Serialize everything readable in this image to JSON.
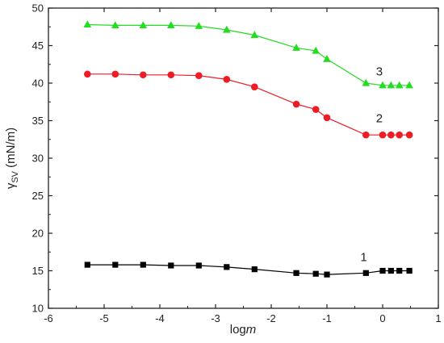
{
  "chart_data": {
    "type": "line",
    "xlabel": {
      "main": "log",
      "italic": "m"
    },
    "ylabel": {
      "main": "γ",
      "sub": "SV",
      "unit": " (mN/m)"
    },
    "xlim": [
      -6,
      1
    ],
    "ylim": [
      10,
      50
    ],
    "xticks": [
      -6,
      -5,
      -4,
      -3,
      -2,
      -1,
      0,
      1
    ],
    "yticks": [
      10,
      15,
      20,
      25,
      30,
      35,
      40,
      45,
      50
    ],
    "grid": false,
    "legend": "none",
    "series": [
      {
        "name": "1",
        "color": "#000000",
        "marker": "square",
        "x": [
          -5.3,
          -4.8,
          -4.3,
          -3.8,
          -3.3,
          -2.8,
          -2.3,
          -1.55,
          -1.2,
          -1.0,
          -0.3,
          0.0,
          0.15,
          0.3,
          0.48
        ],
        "y": [
          15.8,
          15.8,
          15.8,
          15.7,
          15.7,
          15.5,
          15.2,
          14.7,
          14.6,
          14.5,
          14.7,
          15.0,
          15.0,
          15.0,
          15.0
        ]
      },
      {
        "name": "2",
        "color": "#ee1c24",
        "marker": "circle",
        "x": [
          -5.3,
          -4.8,
          -4.3,
          -3.8,
          -3.3,
          -2.8,
          -2.3,
          -1.55,
          -1.2,
          -1.0,
          -0.3,
          0.0,
          0.15,
          0.3,
          0.48
        ],
        "y": [
          41.2,
          41.2,
          41.1,
          41.1,
          41.0,
          40.5,
          39.5,
          37.2,
          36.5,
          35.4,
          33.1,
          33.1,
          33.1,
          33.1,
          33.1
        ]
      },
      {
        "name": "3",
        "color": "#22dd22",
        "marker": "triangle",
        "x": [
          -5.3,
          -4.8,
          -4.3,
          -3.8,
          -3.3,
          -2.8,
          -2.3,
          -1.55,
          -1.2,
          -1.0,
          -0.3,
          0.0,
          0.15,
          0.3,
          0.48
        ],
        "y": [
          47.8,
          47.7,
          47.7,
          47.7,
          47.6,
          47.1,
          46.4,
          44.7,
          44.3,
          43.2,
          40.0,
          39.7,
          39.7,
          39.7,
          39.7
        ]
      }
    ],
    "annotations": [
      {
        "text": "1",
        "x": -0.4,
        "y": 16.3
      },
      {
        "text": "2",
        "x": -0.12,
        "y": 34.8
      },
      {
        "text": "3",
        "x": -0.12,
        "y": 41.0
      }
    ]
  }
}
